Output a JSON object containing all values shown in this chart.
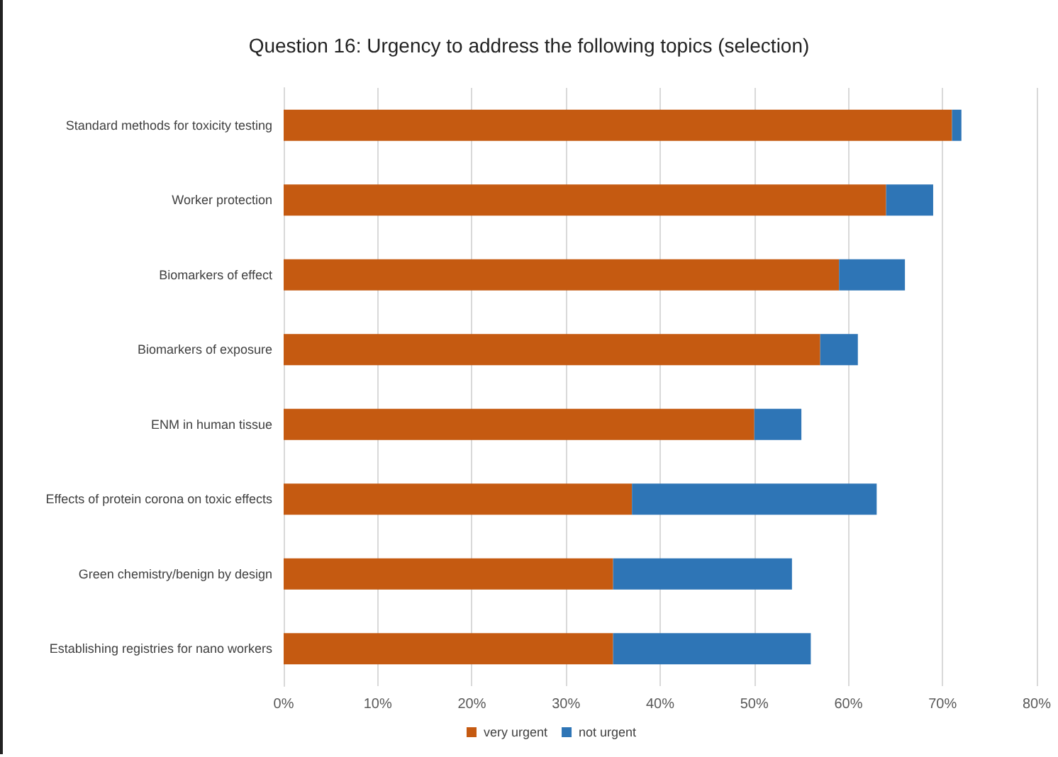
{
  "chart_data": {
    "type": "bar",
    "orientation": "horizontal",
    "stacked": true,
    "title": "Question 16: Urgency to address the following topics (selection)",
    "categories": [
      "Standard methods for toxicity testing",
      "Worker protection",
      "Biomarkers of effect",
      "Biomarkers of exposure",
      "ENM in human tissue",
      "Effects of protein corona on toxic effects",
      "Green chemistry/benign by design",
      "Establishing registries for nano workers"
    ],
    "series": [
      {
        "name": "very urgent",
        "color": "#c55a11",
        "values": [
          71,
          64,
          59,
          57,
          50,
          37,
          35,
          35
        ]
      },
      {
        "name": "not urgent",
        "color": "#2e75b6",
        "values": [
          1,
          5,
          7,
          4,
          5,
          26,
          19,
          21
        ]
      }
    ],
    "xlim": [
      0,
      80
    ],
    "xticks": [
      {
        "value": 0,
        "label": "0%"
      },
      {
        "value": 10,
        "label": "10%"
      },
      {
        "value": 20,
        "label": "20%"
      },
      {
        "value": 30,
        "label": "30%"
      },
      {
        "value": 40,
        "label": "40%"
      },
      {
        "value": 50,
        "label": "50%"
      },
      {
        "value": 60,
        "label": "60%"
      },
      {
        "value": 70,
        "label": "70%"
      },
      {
        "value": 80,
        "label": "80%"
      }
    ],
    "grid": "x",
    "legend": "bottom"
  }
}
